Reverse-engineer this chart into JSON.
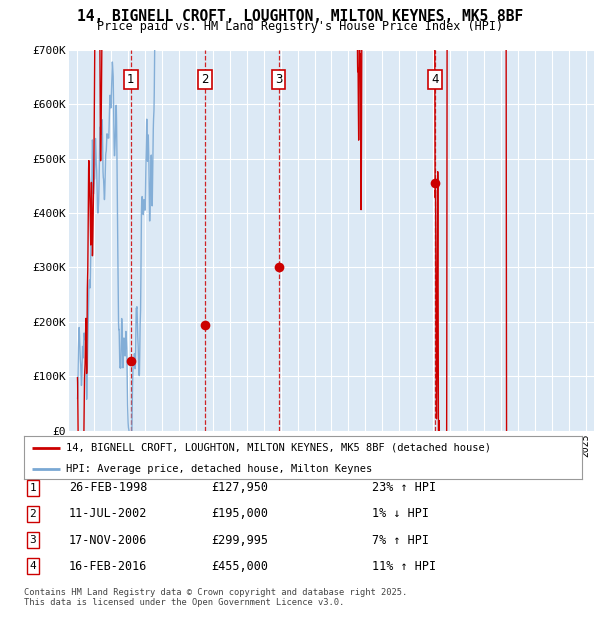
{
  "title_line1": "14, BIGNELL CROFT, LOUGHTON, MILTON KEYNES, MK5 8BF",
  "title_line2": "Price paid vs. HM Land Registry's House Price Index (HPI)",
  "background_color": "#dce9f5",
  "grid_color": "#ffffff",
  "sale_dates": [
    1998.15,
    2002.53,
    2006.89,
    2016.12
  ],
  "sale_prices": [
    127950,
    195000,
    299995,
    455000
  ],
  "sale_labels": [
    "1",
    "2",
    "3",
    "4"
  ],
  "legend_property_label": "14, BIGNELL CROFT, LOUGHTON, MILTON KEYNES, MK5 8BF (detached house)",
  "legend_hpi_label": "HPI: Average price, detached house, Milton Keynes",
  "table_rows": [
    [
      "1",
      "26-FEB-1998",
      "£127,950",
      "23% ↑ HPI"
    ],
    [
      "2",
      "11-JUL-2002",
      "£195,000",
      "1% ↓ HPI"
    ],
    [
      "3",
      "17-NOV-2006",
      "£299,995",
      "7% ↑ HPI"
    ],
    [
      "4",
      "16-FEB-2016",
      "£455,000",
      "11% ↑ HPI"
    ]
  ],
  "footer": "Contains HM Land Registry data © Crown copyright and database right 2025.\nThis data is licensed under the Open Government Licence v3.0.",
  "property_color": "#cc0000",
  "hpi_color": "#7aa8d4",
  "vline_color": "#cc0000",
  "ylim": [
    0,
    700000
  ],
  "xlim_start": 1994.5,
  "xlim_end": 2025.5
}
